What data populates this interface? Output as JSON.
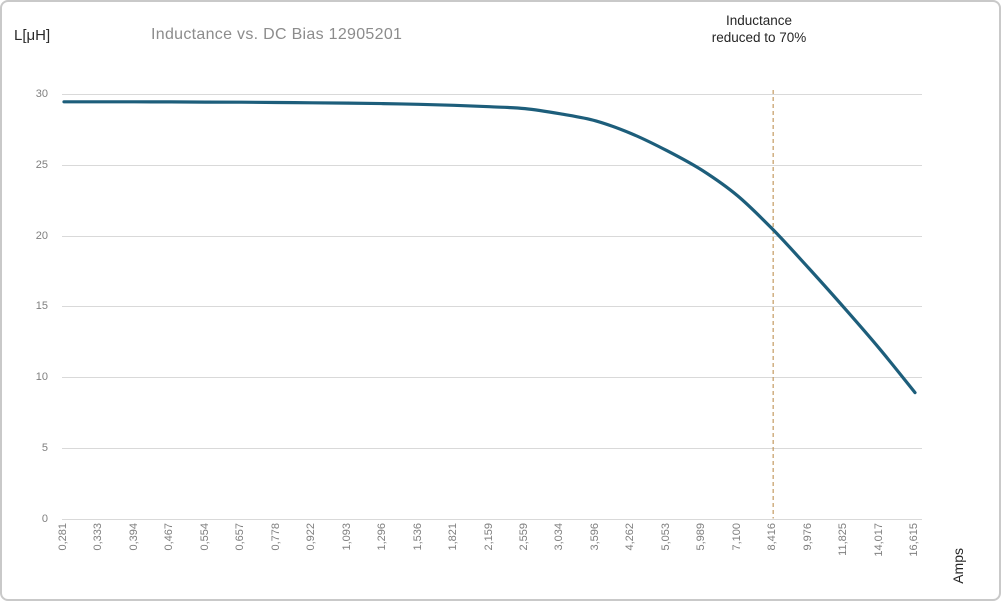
{
  "chart_data": {
    "type": "line",
    "title": "Inductance vs. DC Bias 12905201",
    "ylabel": "L[μH]",
    "xlabel": "Amps",
    "legend": "none",
    "grid": "horizontal",
    "ylim": [
      0,
      30
    ],
    "y_ticks": [
      0,
      5,
      10,
      15,
      20,
      25,
      30
    ],
    "x_tick_labels": [
      "0,281",
      "0,333",
      "0,394",
      "0,467",
      "0,554",
      "0,657",
      "0,778",
      "0,922",
      "1,093",
      "1,296",
      "1,536",
      "1,821",
      "2,159",
      "2,559",
      "3,034",
      "3,596",
      "4,262",
      "5,053",
      "5,989",
      "7,100",
      "8,416",
      "9,976",
      "11,825",
      "14,017",
      "16,615"
    ],
    "x_values": [
      0.281,
      0.333,
      0.394,
      0.467,
      0.554,
      0.657,
      0.778,
      0.922,
      1.093,
      1.296,
      1.536,
      1.821,
      2.159,
      2.559,
      3.034,
      3.596,
      4.262,
      5.053,
      5.989,
      7.1,
      8.416,
      9.976,
      11.825,
      14.017,
      16.615
    ],
    "series": [
      {
        "name": "Inductance vs. DC bias",
        "color": "#1d5e7b",
        "values": [
          29.45,
          29.45,
          29.45,
          29.44,
          29.43,
          29.42,
          29.4,
          29.38,
          29.36,
          29.32,
          29.27,
          29.2,
          29.1,
          28.97,
          28.6,
          28.1,
          27.2,
          26.0,
          24.6,
          22.8,
          20.4,
          17.7,
          14.9,
          12.0,
          8.9
        ]
      }
    ],
    "annotation": {
      "line1": "Inductance",
      "line2": "reduced to 70%",
      "text": "Inductance reduced to 70%",
      "marker_category": "8,416",
      "marker_index": 20,
      "marker_style": "dashed-vertical-line",
      "marker_color": "#c49a62"
    },
    "colors": {
      "grid": "#d9d9d9",
      "axis_text": "#7f7f7f",
      "title_text": "#8c8c8c",
      "dark_text": "#262626",
      "frame_border": "#c9c9c9"
    }
  }
}
